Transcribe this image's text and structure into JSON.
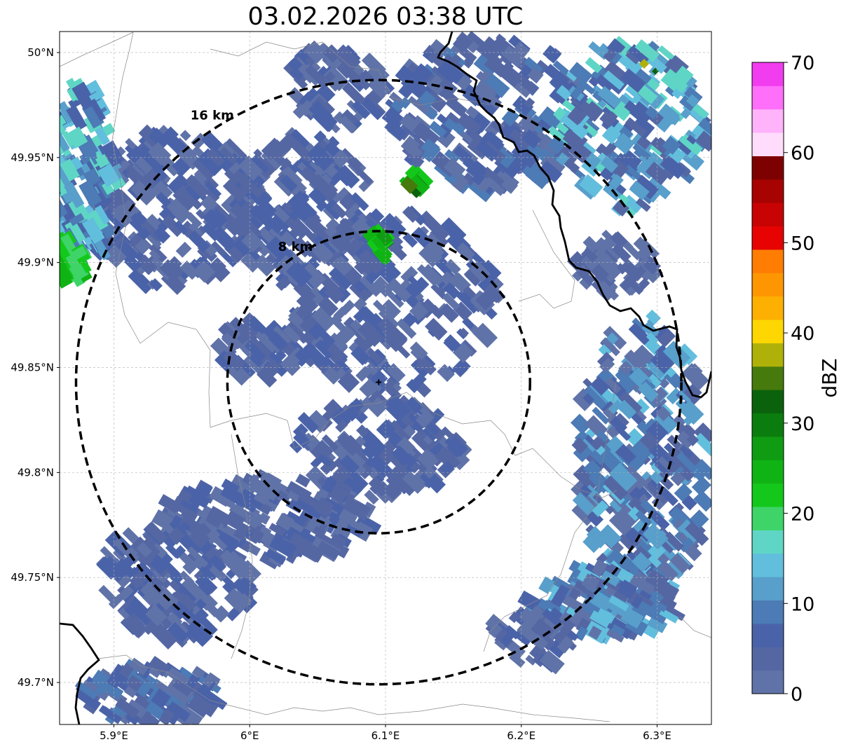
{
  "title": "03.02.2026 03:38 UTC",
  "map": {
    "lon_range": [
      5.86,
      6.34
    ],
    "lat_range": [
      49.68,
      50.01
    ],
    "lon_ticks": [
      {
        "value": 5.9,
        "label": "5.9°E"
      },
      {
        "value": 6.0,
        "label": "6°E"
      },
      {
        "value": 6.1,
        "label": "6.1°E"
      },
      {
        "value": 6.2,
        "label": "6.2°E"
      },
      {
        "value": 6.3,
        "label": "6.3°E"
      }
    ],
    "lat_ticks": [
      {
        "value": 50.0,
        "label": "50°N"
      },
      {
        "value": 49.95,
        "label": "49.95°N"
      },
      {
        "value": 49.9,
        "label": "49.9°N"
      },
      {
        "value": 49.85,
        "label": "49.85°N"
      },
      {
        "value": 49.8,
        "label": "49.8°N"
      },
      {
        "value": 49.75,
        "label": "49.75°N"
      },
      {
        "value": 49.7,
        "label": "49.7°N"
      }
    ],
    "radar_site": {
      "lon": 6.095,
      "lat": 49.843
    },
    "rings": [
      {
        "radius_km": 8,
        "label": "8 km"
      },
      {
        "radius_km": 16,
        "label": "16 km"
      }
    ],
    "colors": {
      "light_echo": "#6073a8",
      "mid_echo": "#4a63a8",
      "border": "#000000"
    }
  },
  "colorbar": {
    "label": "dBZ",
    "min": 0,
    "max": 70,
    "ticks": [
      {
        "value": 0,
        "label": "0"
      },
      {
        "value": 10,
        "label": "10"
      },
      {
        "value": 20,
        "label": "20"
      },
      {
        "value": 30,
        "label": "30"
      },
      {
        "value": 40,
        "label": "40"
      },
      {
        "value": 50,
        "label": "50"
      },
      {
        "value": 60,
        "label": "60"
      },
      {
        "value": 70,
        "label": "70"
      }
    ],
    "colors": [
      "#6073a8",
      "#5567a3",
      "#4a63a8",
      "#4c7bb5",
      "#589fcb",
      "#62bedd",
      "#5fd6c5",
      "#3ed468",
      "#13c81a",
      "#10b314",
      "#0f9c12",
      "#0b7d0e",
      "#0b620c",
      "#467a0c",
      "#afb109",
      "#fed602",
      "#fdb002",
      "#fe9601",
      "#fe7d02",
      "#e60302",
      "#c80303",
      "#a70303",
      "#7e0101",
      "#ffdcfc",
      "#ffb3fb",
      "#ff6ffa",
      "#f23cf0",
      "#f23cf0"
    ]
  }
}
